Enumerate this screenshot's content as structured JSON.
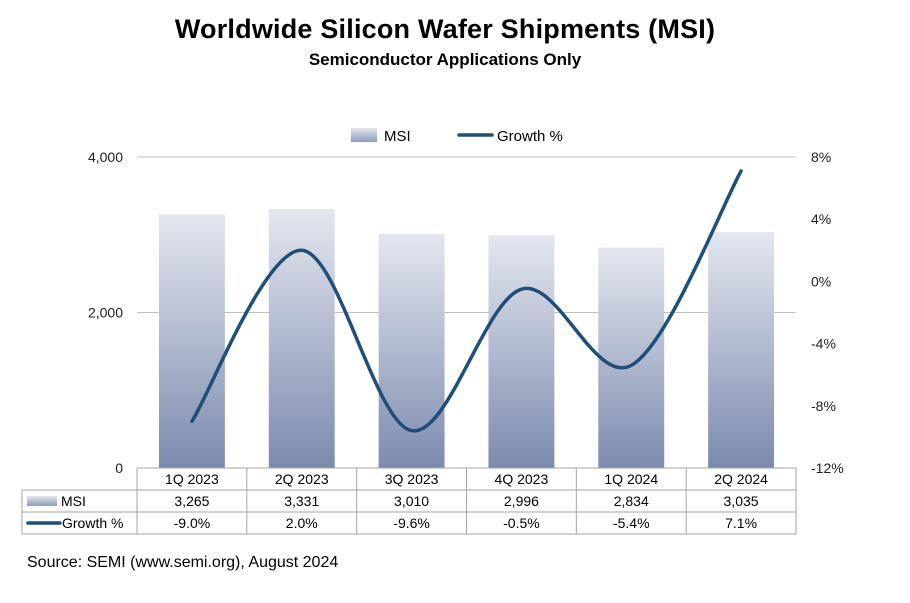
{
  "chart_data": {
    "type": "bar+line",
    "title": "Worldwide Silicon Wafer Shipments (MSI)",
    "subtitle": "Semiconductor Applications Only",
    "categories": [
      "1Q 2023",
      "2Q 2023",
      "3Q 2023",
      "4Q 2023",
      "1Q 2024",
      "2Q 2024"
    ],
    "series": [
      {
        "name": "MSI",
        "type": "bar",
        "axis": "left",
        "values": [
          3265,
          3331,
          3010,
          2996,
          2834,
          3035
        ],
        "labels": [
          "3,265",
          "3,331",
          "3,010",
          "2,996",
          "2,834",
          "3,035"
        ]
      },
      {
        "name": "Growth %",
        "type": "line",
        "axis": "right",
        "values": [
          -9.0,
          2.0,
          -9.6,
          -0.5,
          -5.4,
          7.1
        ],
        "labels": [
          "-9.0%",
          "2.0%",
          "-9.6%",
          "-0.5%",
          "-5.4%",
          "7.1%"
        ]
      }
    ],
    "left_axis": {
      "range": [
        0,
        4000
      ],
      "ticks": [
        0,
        2000,
        4000
      ],
      "tick_labels": [
        "0",
        "2,000",
        "4,000"
      ]
    },
    "right_axis": {
      "range": [
        -12,
        8
      ],
      "ticks": [
        8,
        4,
        0,
        -4,
        -8,
        -12
      ],
      "tick_labels": [
        "8%",
        "4%",
        "0%",
        "-4%",
        "-8%",
        "-12%"
      ]
    },
    "legend": {
      "position": "top-center",
      "entries": [
        "MSI",
        "Growth %"
      ]
    },
    "data_table": true
  },
  "source": "Source: SEMI (www.semi.org), August 2024",
  "colors": {
    "bar_top": "#e4e7ef",
    "bar_bottom": "#7c8aae",
    "line": "#1f4e79",
    "grid": "#bfbfbf",
    "axis": "#a6a6a6"
  },
  "icons": {
    "msi_legend": "gradient-bar-swatch-icon",
    "growth_legend": "line-swatch-icon"
  }
}
